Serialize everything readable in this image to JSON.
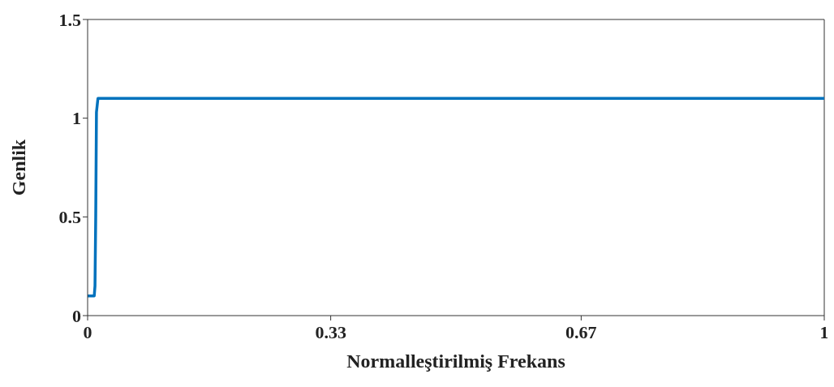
{
  "chart_data": {
    "type": "line",
    "xlabel": "Normalleştirilmiş Frekans",
    "ylabel": "Genlik",
    "x": [
      0,
      0.009,
      0.01,
      0.011,
      0.012,
      0.014,
      1
    ],
    "series": [
      {
        "color": "#0072bd",
        "values": [
          0.1,
          0.1,
          0.15,
          0.5,
          1.03,
          1.1,
          1.1
        ]
      }
    ],
    "xlim": [
      0,
      1
    ],
    "xticks": [
      0,
      0.33,
      0.67,
      1
    ],
    "ylim": [
      0,
      1.5
    ],
    "yticks": [
      0,
      0.5,
      1,
      1.5
    ],
    "grid": false,
    "legend": false,
    "marker": "none",
    "line_style": "solid"
  }
}
